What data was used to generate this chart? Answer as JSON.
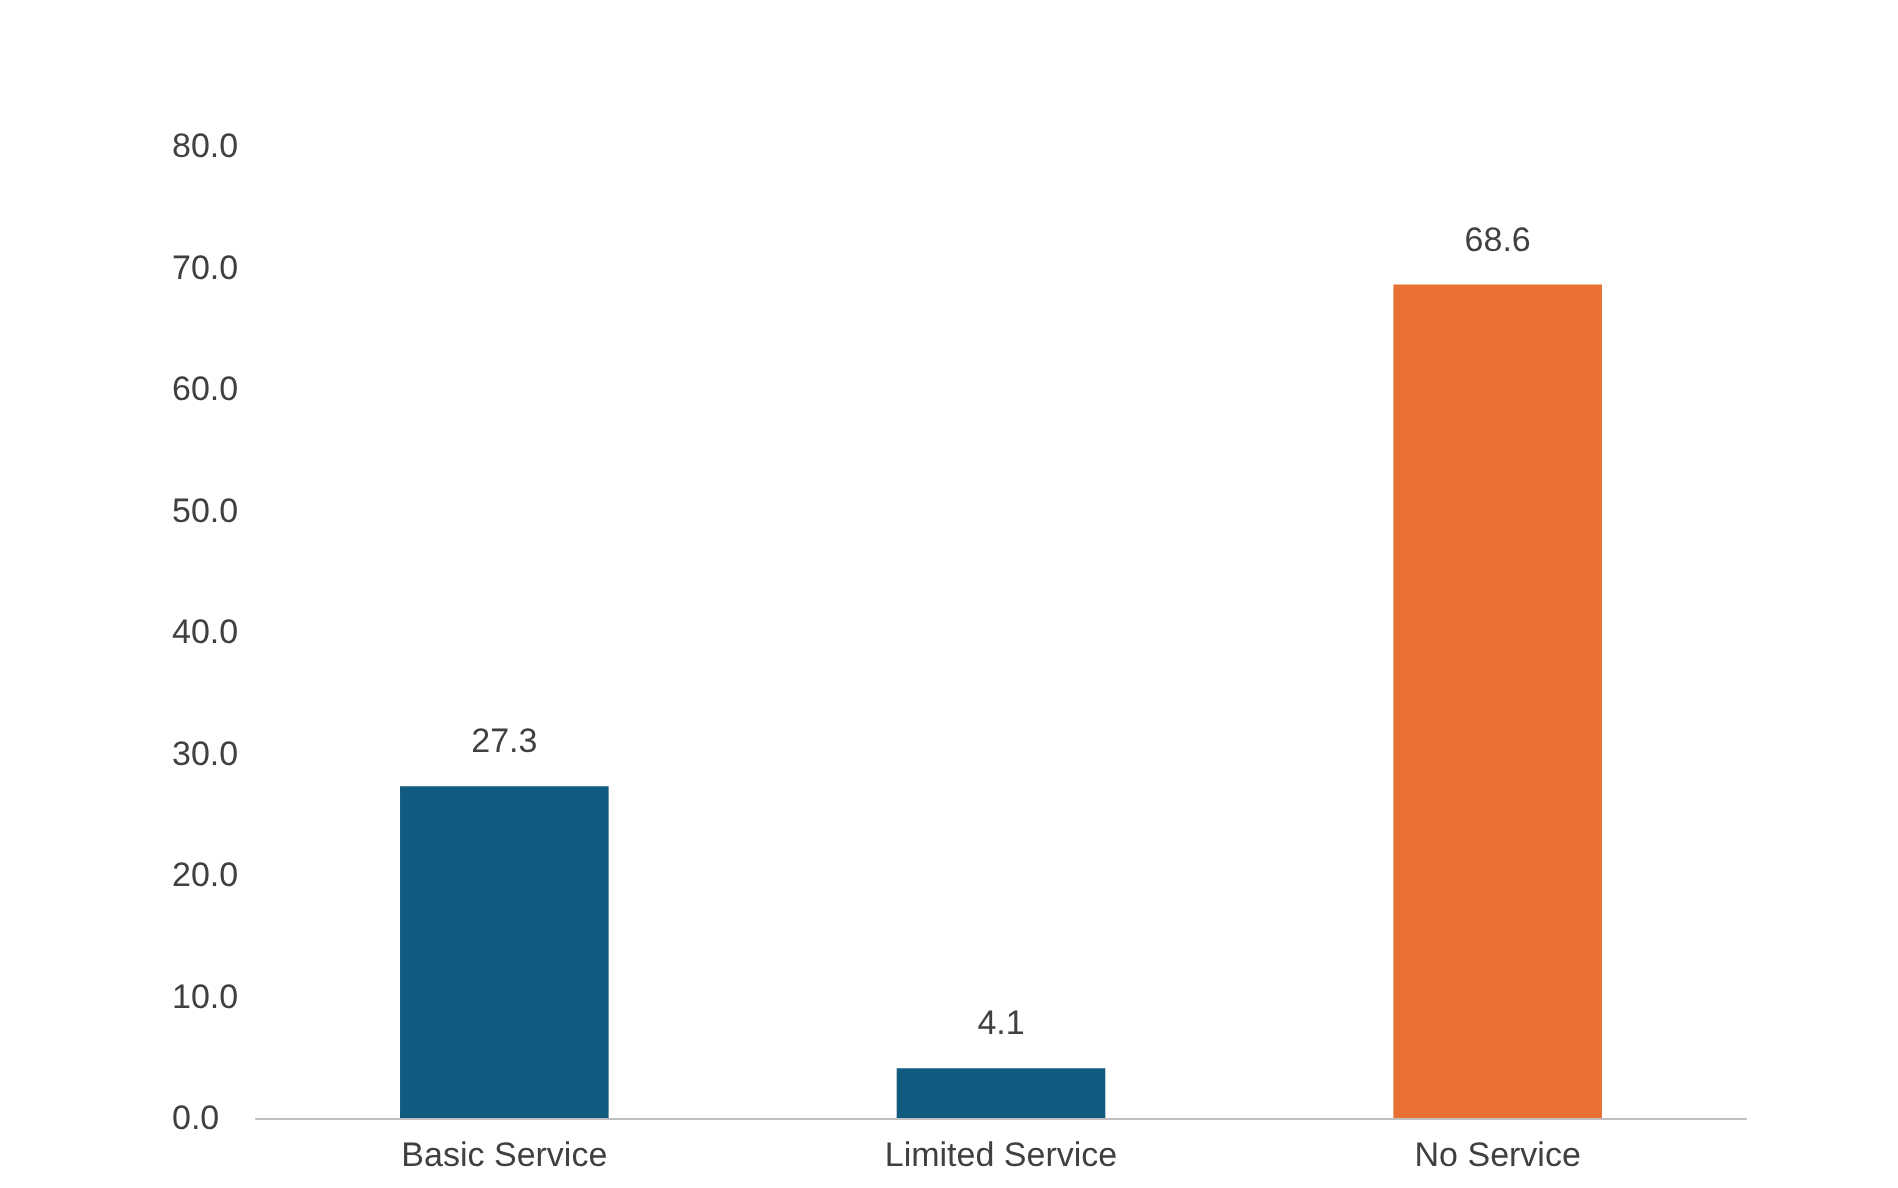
{
  "chart_data": {
    "type": "bar",
    "categories": [
      "Basic Service",
      "Limited Service",
      "No Service"
    ],
    "values": [
      27.3,
      4.1,
      68.6
    ],
    "colors": [
      "#115a80",
      "#115a80",
      "#e87033"
    ],
    "ylim": [
      0,
      80
    ],
    "yticks": [
      {
        "value": 0,
        "label": "0.0"
      },
      {
        "value": 10,
        "label": "10.0"
      },
      {
        "value": 20,
        "label": "20.0"
      },
      {
        "value": 30,
        "label": "30.0"
      },
      {
        "value": 40,
        "label": "40.0"
      },
      {
        "value": 50,
        "label": "50.0"
      },
      {
        "value": 60,
        "label": "60.0"
      },
      {
        "value": 70,
        "label": "70.0"
      },
      {
        "value": 80,
        "label": "80.0"
      }
    ],
    "grid": false,
    "data_labels": true
  }
}
